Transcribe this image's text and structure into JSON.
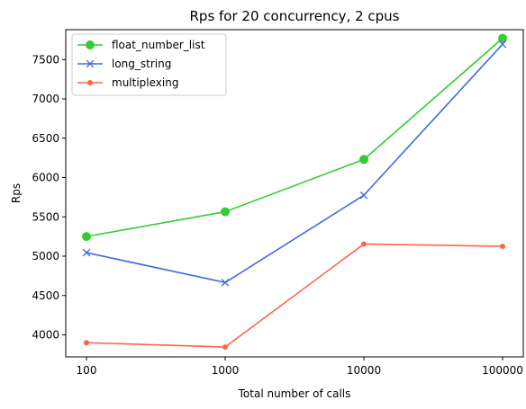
{
  "chart_data": {
    "type": "line",
    "title": "Rps for 20 concurrency, 2 cpus",
    "xlabel": "Total number of calls",
    "ylabel": "Rps",
    "x_scale": "log",
    "categories": [
      "100",
      "1000",
      "10000",
      "100000"
    ],
    "x": [
      100,
      1000,
      10000,
      100000
    ],
    "ylim": [
      3720,
      7880
    ],
    "yticks": [
      4000,
      4500,
      5000,
      5500,
      6000,
      6500,
      7000,
      7500
    ],
    "grid": false,
    "legend_position": "top-left",
    "series": [
      {
        "name": "float_number_list",
        "color": "#32cd32",
        "marker": "circle",
        "values": [
          5250,
          5565,
          6230,
          7770
        ]
      },
      {
        "name": "long_string",
        "color": "#4169e1",
        "marker": "x",
        "values": [
          5045,
          4665,
          5775,
          7695
        ]
      },
      {
        "name": "multiplexing",
        "color": "#ff6347",
        "marker": "point",
        "values": [
          3900,
          3845,
          5155,
          5125
        ]
      }
    ]
  }
}
